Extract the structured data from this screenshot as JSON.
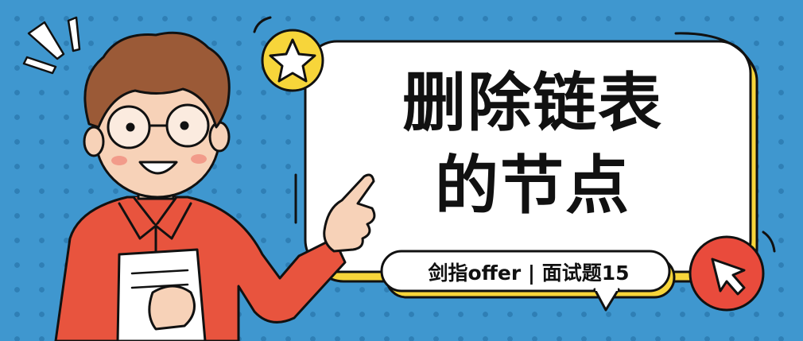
{
  "title": {
    "line1": "删除链表",
    "line2": "的节点"
  },
  "subtitle": "剑指offer | 面试题15",
  "colors": {
    "background": "#3f97cf",
    "dots": "#2f7fb5",
    "card": "#ffffff",
    "outline": "#111111",
    "accent_yellow": "#f7d53a",
    "accent_red": "#e94b3c",
    "hair": "#9b5a37",
    "skin": "#f7d2b8",
    "shirt": "#e8543e"
  },
  "icons": [
    "star-icon",
    "cursor-arrow-icon",
    "burst-lines-icon"
  ]
}
